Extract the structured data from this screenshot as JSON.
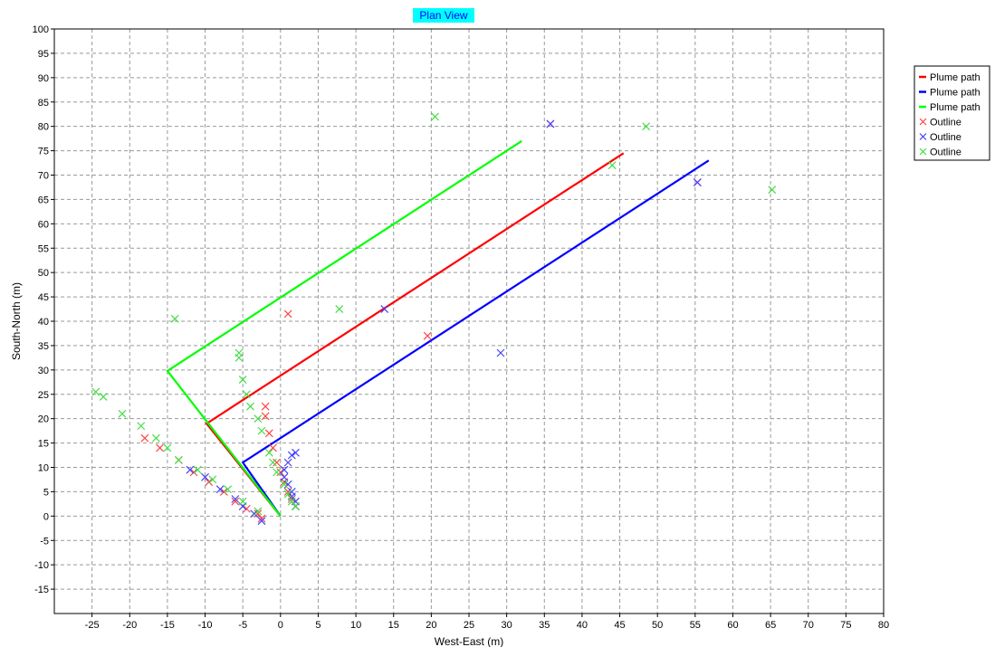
{
  "chart_data": {
    "type": "line",
    "title": "Plan View",
    "xlabel": "West-East (m)",
    "ylabel": "South-North (m)",
    "xlim": [
      -30,
      80
    ],
    "ylim": [
      -20,
      100
    ],
    "xticks": [
      -25,
      -20,
      -15,
      -10,
      -5,
      0,
      5,
      10,
      15,
      20,
      25,
      30,
      35,
      40,
      45,
      50,
      55,
      60,
      65,
      70,
      75,
      80
    ],
    "yticks": [
      -15,
      -10,
      -5,
      0,
      5,
      10,
      15,
      20,
      25,
      30,
      35,
      40,
      45,
      50,
      55,
      60,
      65,
      70,
      75,
      80,
      85,
      90,
      95,
      100
    ],
    "grid": true,
    "legend_position": "right",
    "series": [
      {
        "name": "Plume path",
        "kind": "line",
        "color": "#ff0000",
        "points": [
          [
            0,
            0
          ],
          [
            -9.8,
            19
          ],
          [
            45.5,
            74.5
          ]
        ]
      },
      {
        "name": "Plume path",
        "kind": "line",
        "color": "#0000ff",
        "points": [
          [
            0,
            0
          ],
          [
            -5,
            11
          ],
          [
            56.8,
            73
          ]
        ]
      },
      {
        "name": "Plume path",
        "kind": "line",
        "color": "#00ff00",
        "points": [
          [
            0,
            0
          ],
          [
            -15,
            29.8
          ],
          [
            32,
            77
          ]
        ]
      },
      {
        "name": "Outline",
        "kind": "marker",
        "color": "#ff4444",
        "points": [
          [
            -2,
            22.5
          ],
          [
            -2,
            20.5
          ],
          [
            -1.5,
            17
          ],
          [
            -1,
            14
          ],
          [
            -0.5,
            11
          ],
          [
            0,
            9
          ],
          [
            0.5,
            7
          ],
          [
            1,
            5
          ],
          [
            1.5,
            3.5
          ],
          [
            2,
            2
          ],
          [
            -18,
            16
          ],
          [
            -16,
            14
          ],
          [
            -13.5,
            11.5
          ],
          [
            -11.5,
            9
          ],
          [
            -9.5,
            7
          ],
          [
            -7.5,
            5
          ],
          [
            -6,
            3
          ],
          [
            -4.5,
            1.5
          ],
          [
            -3,
            0.5
          ],
          [
            -2.5,
            -0.5
          ],
          [
            1,
            41.5
          ],
          [
            19.5,
            37
          ],
          [
            35.8,
            80.5
          ],
          [
            55.3,
            68.5
          ]
        ]
      },
      {
        "name": "Outline",
        "kind": "marker",
        "color": "#4444ff",
        "points": [
          [
            2,
            13
          ],
          [
            1.5,
            12.5
          ],
          [
            1,
            11
          ],
          [
            0.5,
            9.5
          ],
          [
            0.5,
            8
          ],
          [
            1,
            6.5
          ],
          [
            1.5,
            5
          ],
          [
            1.5,
            4
          ],
          [
            2,
            3
          ],
          [
            2,
            2
          ],
          [
            -12,
            9.5
          ],
          [
            -10,
            8
          ],
          [
            -8,
            5.5
          ],
          [
            -6,
            3.5
          ],
          [
            -5,
            2
          ],
          [
            -3.5,
            0.5
          ],
          [
            -2.5,
            -1
          ],
          [
            13.8,
            42.5
          ],
          [
            29.2,
            33.5
          ],
          [
            35.8,
            80.5
          ],
          [
            55.3,
            68.5
          ]
        ]
      },
      {
        "name": "Outline",
        "kind": "marker",
        "color": "#44dd44",
        "points": [
          [
            -24.5,
            25.5
          ],
          [
            -23.5,
            24.5
          ],
          [
            -21,
            21
          ],
          [
            -18.5,
            18.5
          ],
          [
            -16.5,
            16
          ],
          [
            -15,
            14
          ],
          [
            -13.5,
            11.5
          ],
          [
            -11,
            9.5
          ],
          [
            -9,
            7.5
          ],
          [
            -7,
            5.5
          ],
          [
            -5,
            3
          ],
          [
            -3,
            1
          ],
          [
            -5.5,
            33.5
          ],
          [
            -5.5,
            32.5
          ],
          [
            -5,
            28
          ],
          [
            -4.5,
            25
          ],
          [
            -4,
            22.5
          ],
          [
            -3,
            20
          ],
          [
            -2.5,
            17.5
          ],
          [
            -1.5,
            13
          ],
          [
            -1,
            11
          ],
          [
            -0.5,
            9
          ],
          [
            0.5,
            6.5
          ],
          [
            1,
            4.5
          ],
          [
            1.5,
            3
          ],
          [
            2,
            2
          ],
          [
            -14,
            40.5
          ],
          [
            7.8,
            42.5
          ],
          [
            20.5,
            82
          ],
          [
            44,
            72
          ],
          [
            48.5,
            80
          ],
          [
            65.2,
            67
          ]
        ]
      }
    ]
  }
}
